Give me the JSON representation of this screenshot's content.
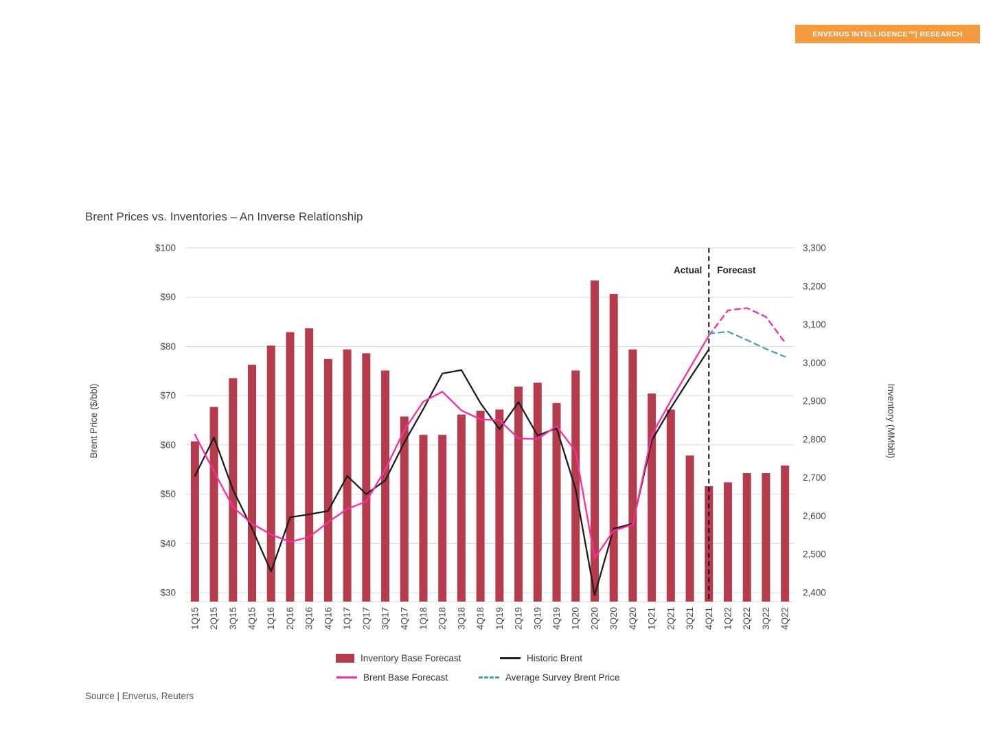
{
  "page": {
    "badge": "ENVERUS INTELLIGENCE™| RESEARCH",
    "title": "Brent Prices vs. Inventories – An Inverse Relationship",
    "source": "Source | Enverus, Reuters"
  },
  "colors": {
    "badge_bg": "#f49b40",
    "badge_text": "#ffffff",
    "bar": "#b53c4d",
    "historic_brent": "#1d1d1d",
    "brent_base_forecast": "#fb2e9c",
    "avg_survey": "#4aa2a9",
    "grid": "#d8d8d8",
    "tick_text": "#484848",
    "divider": "#111111"
  },
  "chart_data": {
    "type": "bar+line (dual axis)",
    "title": "Brent Prices vs. Inventories – An Inverse Relationship",
    "grid": "horizontal only",
    "legend_position": "bottom",
    "categories": [
      "1Q15",
      "2Q15",
      "3Q15",
      "4Q15",
      "1Q16",
      "2Q16",
      "3Q16",
      "4Q16",
      "1Q17",
      "2Q17",
      "3Q17",
      "4Q17",
      "1Q18",
      "2Q18",
      "3Q18",
      "4Q18",
      "1Q19",
      "2Q19",
      "3Q19",
      "4Q19",
      "1Q20",
      "2Q20",
      "3Q20",
      "4Q20",
      "1Q21",
      "2Q21",
      "3Q21",
      "4Q21",
      "1Q22",
      "2Q22",
      "3Q22",
      "4Q22"
    ],
    "left_axis": {
      "title": "Brent Price ($/bbl)",
      "min": 30,
      "max": 100,
      "tick_values": [
        30,
        40,
        50,
        60,
        70,
        80,
        90,
        100
      ],
      "tick_labels": [
        "$30",
        "$40",
        "$50",
        "$60",
        "$70",
        "$80",
        "$90",
        "$100"
      ]
    },
    "right_axis": {
      "title": "Inventory (MMbbl)",
      "min": 2400,
      "max": 3300,
      "tick_values": [
        2400,
        2500,
        2600,
        2700,
        2800,
        2900,
        3000,
        3100,
        3200,
        3300
      ],
      "tick_labels": [
        "2,400",
        "2,500",
        "2,600",
        "2,700",
        "2,800",
        "2,900",
        "3,000",
        "3,100",
        "3,200",
        "3,300"
      ]
    },
    "divider": {
      "at": "4Q21",
      "left_label": "Actual",
      "right_label": "Forecast"
    },
    "series": [
      {
        "name": "Inventory Base Forecast",
        "type": "bar",
        "axis": "right",
        "color": "#b53c4d",
        "values": [
          2795,
          2885,
          2960,
          2995,
          3045,
          3080,
          3090,
          3010,
          3035,
          3025,
          2980,
          2860,
          2812,
          2812,
          2865,
          2875,
          2878,
          2938,
          2948,
          2895,
          2980,
          3215,
          3180,
          3035,
          2920,
          2878,
          2758,
          2678,
          2688,
          2712,
          2712,
          2732
        ]
      },
      {
        "name": "Historic Brent",
        "type": "line",
        "axis": "left",
        "color": "#1d1d1d",
        "values": [
          53.7,
          61.5,
          50.9,
          43,
          34.3,
          45.3,
          45.9,
          46.6,
          53.7,
          50,
          52.8,
          60.5,
          67.3,
          74.5,
          75.2,
          68.5,
          63.2,
          68.7,
          61.9,
          63.4,
          51,
          29.5,
          43,
          44,
          60.9,
          67.5,
          73.5,
          79.4,
          null,
          null,
          null,
          null
        ]
      },
      {
        "name": "Brent Base Forecast",
        "type": "line",
        "axis": "left",
        "color": "#fb2e9c",
        "dash_from_index": 27,
        "values": [
          62.1,
          54.6,
          47.4,
          44,
          41.8,
          40.3,
          41.3,
          44.3,
          47,
          48.5,
          55,
          63,
          68.8,
          70.8,
          67,
          65.2,
          65,
          61.3,
          61.2,
          63.8,
          58.7,
          37,
          42.6,
          43.8,
          62,
          69,
          75.6,
          82.2,
          87.3,
          87.8,
          86,
          80.8
        ]
      },
      {
        "name": "Average Survey Brent Price",
        "type": "line",
        "axis": "left",
        "color": "#4aa2a9",
        "dashed": true,
        "values": [
          null,
          null,
          null,
          null,
          null,
          null,
          null,
          null,
          null,
          null,
          null,
          null,
          null,
          null,
          null,
          null,
          null,
          null,
          null,
          null,
          null,
          null,
          null,
          null,
          null,
          null,
          null,
          82.6,
          83,
          81.3,
          79.5,
          77.9
        ]
      }
    ]
  }
}
